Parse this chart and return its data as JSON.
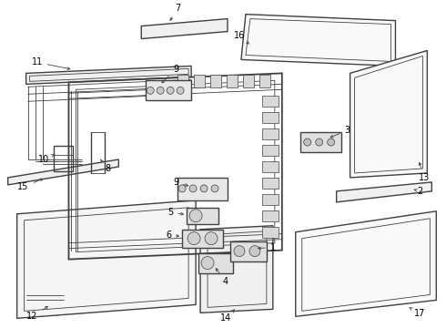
{
  "bg_color": "#ffffff",
  "line_color": "#404040",
  "label_color": "#000000",
  "figsize": [
    4.9,
    3.6
  ],
  "dpi": 100
}
